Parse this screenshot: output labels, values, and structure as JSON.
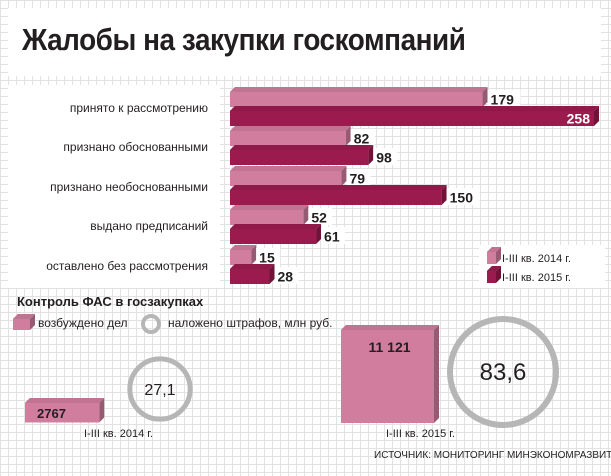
{
  "title": "Жалобы на закупки госкомпаний",
  "legend": {
    "series1": "I-III кв. 2014 г.",
    "series2": "I-III кв. 2015 г."
  },
  "colors": {
    "series1": "#d17e9e",
    "series2": "#9b1b4e",
    "circle": "#b6b6b6"
  },
  "chart_data": [
    {
      "type": "bar",
      "orientation": "horizontal",
      "title": "Жалобы на закупки госкомпаний",
      "categories": [
        "принято к рассмотрению",
        "признано обоснованными",
        "признано необоснованными",
        "выдано предписаний",
        "оставлено без рассмотрения"
      ],
      "series": [
        {
          "name": "I-III кв. 2014 г.",
          "values": [
            179,
            82,
            79,
            52,
            15
          ]
        },
        {
          "name": "I-III кв. 2015 г.",
          "values": [
            258,
            98,
            150,
            61,
            28
          ]
        }
      ],
      "grid": false,
      "legend_position": "bottom-right"
    },
    {
      "type": "bubble",
      "title": "Контроль ФАС в госзакупках",
      "categories": [
        "I-III кв. 2014 г.",
        "I-III кв. 2015 г."
      ],
      "series": [
        {
          "name": "возбуждено дел",
          "values": [
            2767,
            11121
          ],
          "labels": [
            "2767",
            "11 121"
          ]
        },
        {
          "name": "наложено штрафов, млн руб.",
          "values": [
            27.1,
            83.6
          ],
          "labels": [
            "27,1",
            "83,6"
          ]
        }
      ]
    }
  ],
  "source": "ИСТОЧНИК: МОНИТОРИНГ МИНЭКОНОМРАЗВИТИЯ"
}
